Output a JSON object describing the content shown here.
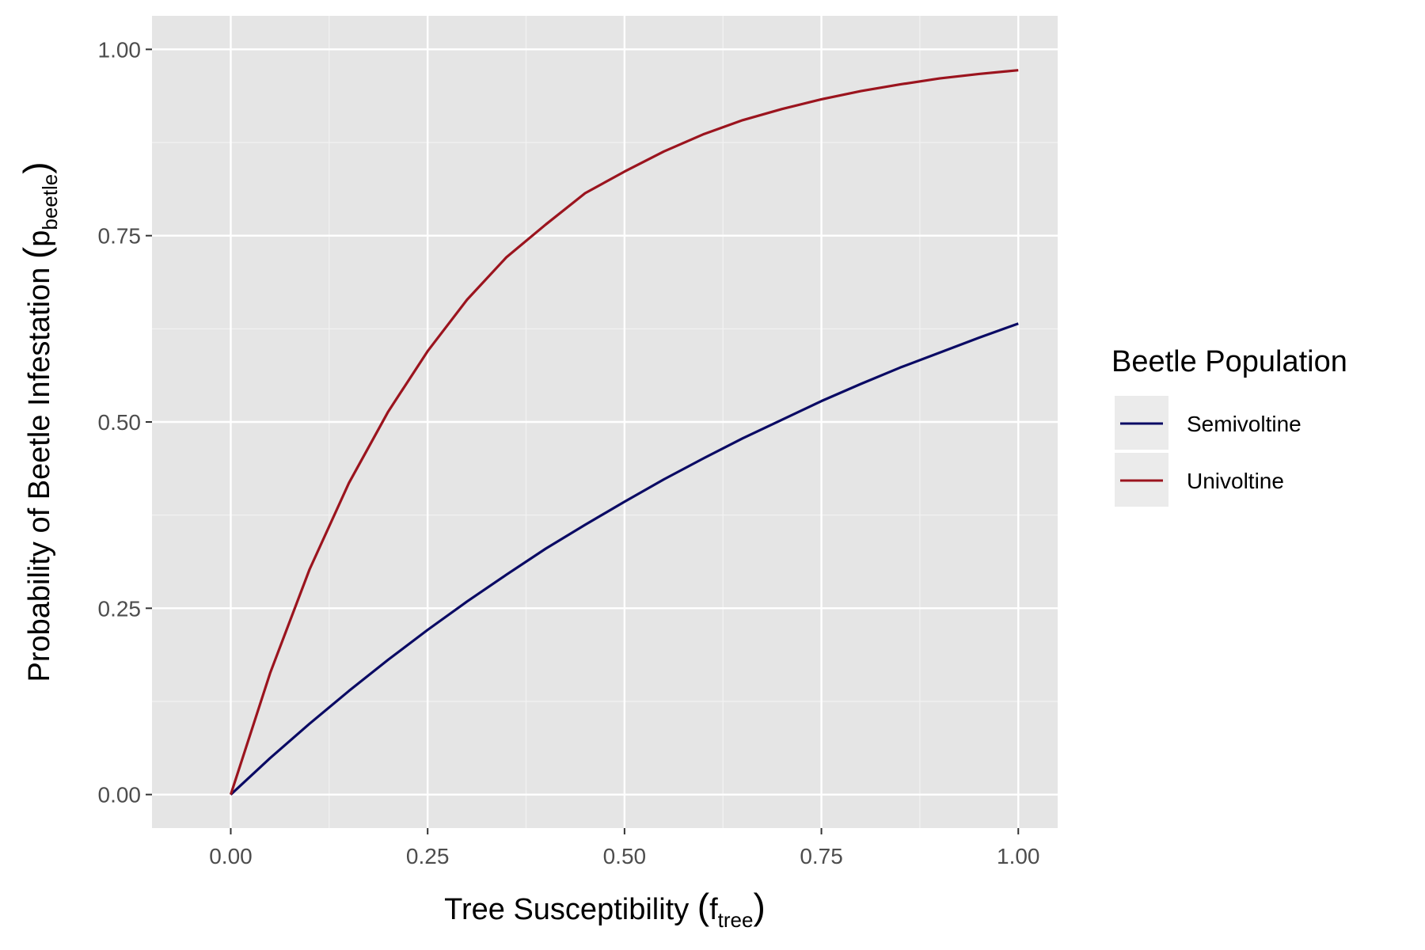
{
  "chart_data": {
    "type": "line",
    "xlabel": {
      "main": "Tree Susceptibility ",
      "open": "(",
      "base": "f",
      "sub": "tree",
      "close": ")"
    },
    "ylabel": {
      "main": "Probability of Beetle Infestation ",
      "open": "(",
      "base": "p",
      "sub": "beetle",
      "close": ")"
    },
    "xlim": [
      -0.1,
      1.05
    ],
    "ylim": [
      -0.045,
      1.045
    ],
    "x_ticks": [
      0,
      0.25,
      0.5,
      0.75,
      1
    ],
    "x_tick_labels": [
      "0.00",
      "0.25",
      "0.50",
      "0.75",
      "1.00"
    ],
    "y_ticks": [
      0,
      0.25,
      0.5,
      0.75,
      1
    ],
    "y_tick_labels": [
      "0.00",
      "0.25",
      "0.50",
      "0.75",
      "1.00"
    ],
    "grid": true,
    "legend": {
      "title": "Beetle Population",
      "placement": "right"
    },
    "x": [
      0,
      0.05,
      0.1,
      0.15,
      0.2,
      0.25,
      0.3,
      0.35,
      0.4,
      0.45,
      0.5,
      0.55,
      0.6,
      0.65,
      0.7,
      0.75,
      0.8,
      0.85,
      0.9,
      0.95,
      1
    ],
    "series": [
      {
        "name": "Semivoltine",
        "color": "#0a0a64",
        "values": [
          0,
          0.049,
          0.095,
          0.139,
          0.181,
          0.221,
          0.259,
          0.295,
          0.33,
          0.362,
          0.393,
          0.423,
          0.451,
          0.478,
          0.503,
          0.528,
          0.551,
          0.573,
          0.593,
          0.613,
          0.632
        ]
      },
      {
        "name": "Univoltine",
        "color": "#9b141e",
        "values": [
          0,
          0.163,
          0.302,
          0.418,
          0.514,
          0.595,
          0.664,
          0.721,
          0.765,
          0.807,
          0.836,
          0.863,
          0.886,
          0.905,
          0.92,
          0.933,
          0.944,
          0.953,
          0.961,
          0.967,
          0.972
        ]
      }
    ]
  }
}
